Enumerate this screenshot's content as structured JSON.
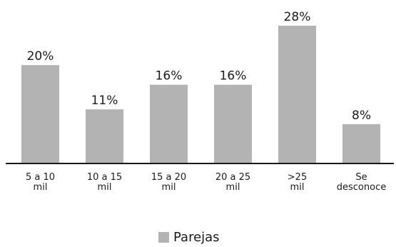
{
  "chart_data": {
    "type": "bar",
    "categories": [
      [
        "5 a 10",
        "mil"
      ],
      [
        "10 a 15",
        "mil"
      ],
      [
        "15 a 20",
        "mil"
      ],
      [
        "20 a 25",
        "mil"
      ],
      [
        ">25",
        "mil"
      ],
      [
        "Se",
        "desconoce"
      ]
    ],
    "series": [
      {
        "name": "Parejas",
        "values": [
          20,
          11,
          16,
          16,
          28,
          8
        ]
      }
    ],
    "value_suffix": "%",
    "ylim": [
      0,
      28
    ],
    "grid": false,
    "legend_position": "bottom",
    "colors": {
      "bar": "#b3b3b3",
      "text": "#1a1a1a"
    }
  }
}
